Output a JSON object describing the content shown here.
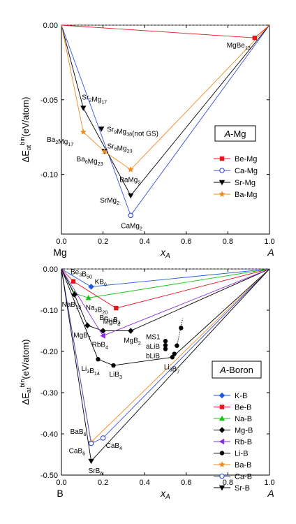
{
  "chart_data": [
    {
      "type": "scatter",
      "ylabel": "ΔE_at^bin(eV/atom)",
      "xlabel": "x_A",
      "xlim": [
        0,
        1
      ],
      "ylim": [
        -0.14,
        0.0
      ],
      "y_ticks": [
        "0.00",
        "-0.05",
        "-0.10"
      ],
      "y_tick_values": [
        0.0,
        -0.05,
        -0.1
      ],
      "x_ticks": [
        "0.0",
        "0.2",
        "0.4",
        "0.6",
        "0.8",
        "1.0"
      ],
      "x_tick_values": [
        0.0,
        0.2,
        0.4,
        0.6,
        0.8,
        1.0
      ],
      "x_end_labels": {
        "left": "Mg",
        "right": "A"
      },
      "legend": {
        "title": "A-Mg",
        "title_italic": "A",
        "title_rest": "-Mg",
        "placement": "right"
      },
      "series": [
        {
          "name": "Be-Mg",
          "color": "#e8141c",
          "marker": "square",
          "hull": [
            [
              0,
              0
            ],
            [
              0.929,
              -0.0085
            ],
            [
              1,
              0
            ]
          ],
          "points": [
            [
              0.929,
              -0.0085
            ]
          ]
        },
        {
          "name": "Ca-Mg",
          "color": "#3a4fe0",
          "marker": "circle-open",
          "hull": [
            [
              0,
              0
            ],
            [
              0.333,
              -0.1275
            ],
            [
              1,
              0
            ]
          ],
          "points": [
            [
              0.333,
              -0.1275
            ]
          ]
        },
        {
          "name": "Sr-Mg",
          "color": "#000000",
          "marker": "tri-down",
          "hull": [
            [
              0,
              0
            ],
            [
              0.105,
              -0.0555
            ],
            [
              0.333,
              -0.1142
            ],
            [
              1,
              0
            ]
          ],
          "points": [
            [
              0.105,
              -0.0555
            ],
            [
              0.192,
              -0.0695
            ],
            [
              0.207,
              -0.0845
            ],
            [
              0.333,
              -0.1142
            ]
          ]
        },
        {
          "name": "Ba-Mg",
          "color": "#f08a1f",
          "marker": "star",
          "hull": [
            [
              0,
              0
            ],
            [
              0.105,
              -0.0716
            ],
            [
              0.207,
              -0.0847
            ],
            [
              0.333,
              -0.0968
            ],
            [
              1,
              0
            ]
          ],
          "points": [
            [
              0.105,
              -0.0716
            ],
            [
              0.207,
              -0.0847
            ],
            [
              0.333,
              -0.0968
            ]
          ]
        }
      ],
      "annotations": [
        {
          "base": "MgBe",
          "sub": "13",
          "x": 0.929,
          "y": -0.0085
        },
        {
          "base": "Sr",
          "sub": "2",
          "mid": "Mg",
          "sub2": "17",
          "x": 0.105,
          "y": -0.0555
        },
        {
          "base": "Sr",
          "sub": "9",
          "mid": "Mg",
          "sub2": "38",
          "tail": "(not GS)",
          "x": 0.192,
          "y": -0.0695
        },
        {
          "base": "Ba",
          "sub": "2",
          "mid": "Mg",
          "sub2": "17",
          "x": 0.105,
          "y": -0.0716
        },
        {
          "base": "Sr",
          "sub": "6",
          "mid": "Mg",
          "sub2": "23",
          "x": 0.207,
          "y": -0.0845
        },
        {
          "base": "Ba",
          "sub": "6",
          "mid": "Mg",
          "sub2": "23",
          "x": 0.207,
          "y": -0.0847
        },
        {
          "base": "BaMg",
          "sub": "2",
          "x": 0.333,
          "y": -0.0968
        },
        {
          "base": "SrMg",
          "sub": "2",
          "x": 0.333,
          "y": -0.1142
        },
        {
          "base": "CaMg",
          "sub": "2",
          "x": 0.333,
          "y": -0.1275
        }
      ]
    },
    {
      "type": "scatter",
      "ylabel": "ΔE_at^bin(eV/atom)",
      "xlabel": "x_A",
      "xlim": [
        0,
        1
      ],
      "ylim": [
        -0.5,
        0.0
      ],
      "y_ticks": [
        "0.00",
        "-0.10",
        "-0.20",
        "-0.30",
        "-0.40",
        "-0.50"
      ],
      "y_tick_values": [
        0.0,
        -0.1,
        -0.2,
        -0.3,
        -0.4,
        -0.5
      ],
      "x_ticks": [
        "0.0",
        "0.2",
        "0.4",
        "0.6",
        "0.8",
        "1.0"
      ],
      "x_tick_values": [
        0.0,
        0.2,
        0.4,
        0.6,
        0.8,
        1.0
      ],
      "x_end_labels": {
        "left": "B",
        "right": "A"
      },
      "legend": {
        "title": "A-Boron",
        "title_italic": "A",
        "title_rest": "-Boron",
        "placement": "right"
      },
      "series": [
        {
          "name": "K-B",
          "color": "#1e56e6",
          "marker": "diamond",
          "hull": [
            [
              0,
              0
            ],
            [
              0.143,
              -0.043
            ],
            [
              1,
              0
            ]
          ],
          "points": [
            [
              0.143,
              -0.043
            ]
          ]
        },
        {
          "name": "Be-B",
          "color": "#e8141c",
          "marker": "square",
          "hull": [
            [
              0,
              0
            ],
            [
              0.057,
              -0.03
            ],
            [
              0.263,
              -0.095
            ],
            [
              1,
              0
            ]
          ],
          "points": [
            [
              0.057,
              -0.03
            ],
            [
              0.263,
              -0.095
            ]
          ]
        },
        {
          "name": "Na-B",
          "color": "#18c418",
          "marker": "tri-up",
          "hull": [
            [
              0,
              0
            ],
            [
              0.0625,
              -0.059
            ],
            [
              0.13,
              -0.07
            ],
            [
              1,
              0
            ]
          ],
          "points": [
            [
              0.0625,
              -0.059
            ],
            [
              0.13,
              -0.07
            ]
          ]
        },
        {
          "name": "Mg-B",
          "color": "#000000",
          "marker": "diamond",
          "hull": [
            [
              0,
              0
            ],
            [
              0.0625,
              -0.062
            ],
            [
              0.125,
              -0.137
            ],
            [
              0.2,
              -0.15
            ],
            [
              0.333,
              -0.15
            ],
            [
              1,
              0
            ]
          ],
          "points": [
            [
              0.0625,
              -0.062
            ],
            [
              0.125,
              -0.137
            ],
            [
              0.2,
              -0.15
            ],
            [
              0.333,
              -0.15
            ]
          ]
        },
        {
          "name": "Rb-B",
          "color": "#8a2be2",
          "marker": "tri-left",
          "hull": [
            [
              0,
              0
            ],
            [
              0.2,
              -0.162
            ],
            [
              1,
              0
            ]
          ],
          "points": [
            [
              0.2,
              -0.162
            ]
          ]
        },
        {
          "name": "Li-B",
          "color": "#000000",
          "marker": "circle",
          "hull": [
            [
              0,
              0
            ],
            [
              0.176,
              -0.219
            ],
            [
              0.25,
              -0.234
            ],
            [
              0.533,
              -0.214
            ],
            [
              1,
              0
            ]
          ],
          "points": [
            [
              0.176,
              -0.219
            ],
            [
              0.25,
              -0.234
            ],
            [
              0.5,
              -0.175
            ],
            [
              0.5,
              -0.185
            ],
            [
              0.5,
              -0.194
            ],
            [
              0.533,
              -0.214
            ],
            [
              0.543,
              -0.206
            ],
            [
              0.555,
              -0.186
            ],
            [
              0.575,
              -0.143
            ]
          ]
        },
        {
          "name": "Ba-B",
          "color": "#f08a1f",
          "marker": "star",
          "hull": [
            [
              0,
              0
            ],
            [
              0.143,
              -0.42
            ],
            [
              1,
              0
            ]
          ],
          "points": [
            [
              0.143,
              -0.42
            ]
          ]
        },
        {
          "name": "Ca-B",
          "color": "#3a4fe0",
          "marker": "circle-open",
          "hull": [
            [
              0,
              0
            ],
            [
              0.143,
              -0.423
            ],
            [
              0.2,
              -0.41
            ],
            [
              1,
              0
            ]
          ],
          "points": [
            [
              0.143,
              -0.423
            ],
            [
              0.2,
              -0.41
            ]
          ]
        },
        {
          "name": "Sr-B",
          "color": "#000000",
          "marker": "tri-down",
          "hull": [
            [
              0,
              0
            ],
            [
              0.143,
              -0.466
            ],
            [
              1,
              0
            ]
          ],
          "points": [
            [
              0.143,
              -0.466
            ]
          ]
        }
      ],
      "annotations": [
        {
          "base": "Be",
          "sub": "3",
          "mid": "B",
          "sub2": "50",
          "x": 0.057,
          "y": -0.03
        },
        {
          "base": "KB",
          "sub": "6",
          "x": 0.143,
          "y": -0.043
        },
        {
          "base": "NaB",
          "sub": "15",
          "x": 0.0625,
          "y": -0.059
        },
        {
          "base": "Na",
          "sub": "3",
          "mid": "B",
          "sub2": "20",
          "x": 0.13,
          "y": -0.07
        },
        {
          "base": "Be",
          "sub": "11",
          "mid": "B",
          "sub2": "3",
          "x": 0.263,
          "y": -0.095
        },
        {
          "base": "MgB",
          "sub": "4",
          "x": 0.2,
          "y": -0.15
        },
        {
          "base": "MgB",
          "sub": "7",
          "x": 0.125,
          "y": -0.137
        },
        {
          "base": "RbB",
          "sub": "4",
          "x": 0.2,
          "y": -0.162
        },
        {
          "base": "MgB",
          "sub": "2",
          "x": 0.333,
          "y": -0.15
        },
        {
          "base": "MS1",
          "x": 0.5,
          "y": -0.175
        },
        {
          "base": "aLiB",
          "x": 0.5,
          "y": -0.185
        },
        {
          "base": "bLiB",
          "x": 0.5,
          "y": -0.194
        },
        {
          "base": "Li",
          "sub": "3",
          "mid": "B",
          "sub2": "14",
          "x": 0.176,
          "y": -0.219
        },
        {
          "base": "LiB",
          "sub": "3",
          "x": 0.25,
          "y": -0.234
        },
        {
          "base": "Li",
          "sub": "8",
          "mid": "B",
          "sub2": "7",
          "x": 0.533,
          "y": -0.214
        },
        {
          "base": "BaB",
          "sub": "6",
          "x": 0.143,
          "y": -0.42
        },
        {
          "base": "CaB",
          "sub": "6",
          "x": 0.143,
          "y": -0.423
        },
        {
          "base": "CaB",
          "sub": "4",
          "x": 0.2,
          "y": -0.41
        },
        {
          "base": "SrB",
          "sub": "6",
          "x": 0.143,
          "y": -0.466
        }
      ]
    }
  ]
}
